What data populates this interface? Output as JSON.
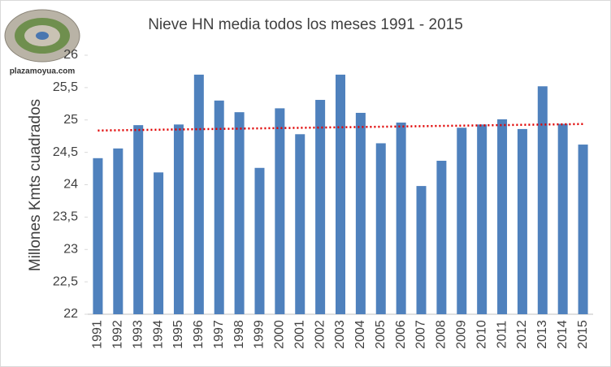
{
  "chart_data": {
    "type": "bar",
    "title": "Nieve HN media todos los meses 1991 - 2015",
    "y_label": "Millones Kmts cuadrados",
    "watermark": "plazamoyua.com",
    "categories": [
      "1991",
      "1992",
      "1993",
      "1994",
      "1995",
      "1996",
      "1997",
      "1998",
      "1999",
      "2000",
      "2001",
      "2002",
      "2003",
      "2004",
      "2005",
      "2006",
      "2007",
      "2008",
      "2009",
      "2010",
      "2011",
      "2012",
      "2013",
      "2014",
      "2015"
    ],
    "values": [
      24.41,
      24.56,
      24.92,
      24.19,
      24.93,
      25.7,
      25.3,
      25.12,
      24.26,
      25.18,
      24.78,
      25.31,
      25.7,
      25.11,
      24.64,
      24.96,
      23.98,
      24.37,
      24.88,
      24.93,
      25.01,
      24.86,
      25.52,
      24.94,
      24.62
    ],
    "color": "#4f81bd",
    "trendline": true,
    "trendline_color": "#e00000",
    "ylim": [
      22,
      26
    ],
    "yticks": [
      22,
      {
        "value": 22.5,
        "label": "22,5"
      },
      23,
      {
        "value": 23.5,
        "label": "23,5"
      },
      24,
      {
        "value": 24.5,
        "label": "24,5"
      },
      25,
      {
        "value": 25.5,
        "label": "25,5"
      },
      26
    ]
  }
}
